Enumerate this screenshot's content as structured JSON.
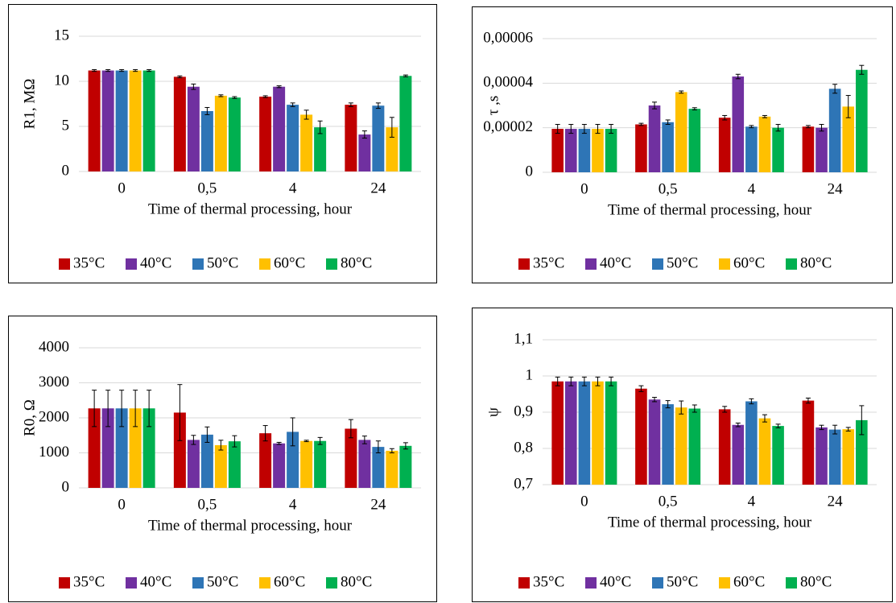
{
  "chart_data": [
    {
      "type": "bar",
      "y_label": "R1, MΩ",
      "x_label": "Time of thermal processing, hour",
      "categories": [
        "0",
        "0,5",
        "4",
        "24"
      ],
      "ylim": [
        0,
        15
      ],
      "yticks": [
        0,
        5,
        10,
        15
      ],
      "grid": true,
      "legend": "bottom",
      "series": [
        {
          "name": "35°C",
          "color": "#c00000",
          "values": [
            11.2,
            10.5,
            8.3,
            7.4
          ],
          "errors": [
            0.1,
            0.1,
            0.1,
            0.2
          ]
        },
        {
          "name": "40°C",
          "color": "#7030a0",
          "values": [
            11.2,
            9.4,
            9.4,
            4.1
          ],
          "errors": [
            0.1,
            0.3,
            0.1,
            0.4
          ]
        },
        {
          "name": "50°C",
          "color": "#2e75b6",
          "values": [
            11.2,
            6.7,
            7.4,
            7.3
          ],
          "errors": [
            0.1,
            0.4,
            0.2,
            0.3
          ]
        },
        {
          "name": "60°C",
          "color": "#ffc000",
          "values": [
            11.2,
            8.4,
            6.3,
            4.9
          ],
          "errors": [
            0.1,
            0.1,
            0.5,
            1.1
          ]
        },
        {
          "name": "80°C",
          "color": "#00b050",
          "values": [
            11.2,
            8.2,
            4.9,
            10.6
          ],
          "errors": [
            0.1,
            0.1,
            0.7,
            0.1
          ]
        }
      ]
    },
    {
      "type": "bar",
      "y_label": "τ ,s",
      "x_label": "Time of thermal processing, hour",
      "categories": [
        "0",
        "0,5",
        "4",
        "24"
      ],
      "ylim": [
        0,
        6e-05
      ],
      "yticks": [
        0,
        {
          "value": 2e-05,
          "label": "0,00002"
        },
        {
          "value": 4e-05,
          "label": "0,00004"
        },
        {
          "value": 6e-05,
          "label": "0,00006"
        }
      ],
      "grid": true,
      "legend": "bottom",
      "series": [
        {
          "name": "35°C",
          "color": "#c00000",
          "values": [
            1.95e-05,
            2.15e-05,
            2.45e-05,
            2.05e-05
          ],
          "errors": [
            2e-06,
            5e-07,
            1e-06,
            5e-07
          ]
        },
        {
          "name": "40°C",
          "color": "#7030a0",
          "values": [
            1.95e-05,
            3e-05,
            4.3e-05,
            2e-05
          ],
          "errors": [
            2e-06,
            1.5e-06,
            1e-06,
            1.5e-06
          ]
        },
        {
          "name": "50°C",
          "color": "#2e75b6",
          "values": [
            1.95e-05,
            2.25e-05,
            2.05e-05,
            3.75e-05
          ],
          "errors": [
            2e-06,
            1e-06,
            5e-07,
            2e-06
          ]
        },
        {
          "name": "60°C",
          "color": "#ffc000",
          "values": [
            1.95e-05,
            3.6e-05,
            2.5e-05,
            2.95e-05
          ],
          "errors": [
            2e-06,
            5e-07,
            5e-07,
            5e-06
          ]
        },
        {
          "name": "80°C",
          "color": "#00b050",
          "values": [
            1.95e-05,
            2.85e-05,
            2e-05,
            4.6e-05
          ],
          "errors": [
            2e-06,
            5e-07,
            1.5e-06,
            2e-06
          ]
        }
      ]
    },
    {
      "type": "bar",
      "y_label": "R0, Ω",
      "x_label": "Time of thermal processing, hour",
      "categories": [
        "0",
        "0,5",
        "4",
        "24"
      ],
      "ylim": [
        0,
        4000
      ],
      "yticks": [
        0,
        1000,
        2000,
        3000,
        4000
      ],
      "grid": true,
      "legend": "bottom",
      "series": [
        {
          "name": "35°C",
          "color": "#c00000",
          "values": [
            2270,
            2150,
            1560,
            1690
          ],
          "errors": [
            520,
            800,
            220,
            260
          ]
        },
        {
          "name": "40°C",
          "color": "#7030a0",
          "values": [
            2270,
            1370,
            1270,
            1370
          ],
          "errors": [
            520,
            130,
            30,
            110
          ]
        },
        {
          "name": "50°C",
          "color": "#2e75b6",
          "values": [
            2270,
            1520,
            1600,
            1170
          ],
          "errors": [
            520,
            220,
            400,
            170
          ]
        },
        {
          "name": "60°C",
          "color": "#ffc000",
          "values": [
            2270,
            1220,
            1340,
            1060
          ],
          "errors": [
            520,
            140,
            20,
            60
          ]
        },
        {
          "name": "80°C",
          "color": "#00b050",
          "values": [
            2270,
            1330,
            1340,
            1200
          ],
          "errors": [
            520,
            160,
            100,
            90
          ]
        }
      ]
    },
    {
      "type": "bar",
      "y_label": "ψ",
      "x_label": "Time of thermal processing, hour",
      "categories": [
        "0",
        "0,5",
        "4",
        "24"
      ],
      "ylim": [
        0.7,
        1.1
      ],
      "yticks": [
        {
          "value": 0.7,
          "label": "0,7"
        },
        {
          "value": 0.8,
          "label": "0,8"
        },
        {
          "value": 0.9,
          "label": "0,9"
        },
        1,
        {
          "value": 1.1,
          "label": "1,1"
        }
      ],
      "grid": true,
      "legend": "bottom",
      "series": [
        {
          "name": "35°C",
          "color": "#c00000",
          "values": [
            0.985,
            0.965,
            0.908,
            0.932
          ],
          "errors": [
            0.012,
            0.008,
            0.008,
            0.007
          ]
        },
        {
          "name": "40°C",
          "color": "#7030a0",
          "values": [
            0.985,
            0.935,
            0.865,
            0.858
          ],
          "errors": [
            0.012,
            0.006,
            0.005,
            0.006
          ]
        },
        {
          "name": "50°C",
          "color": "#2e75b6",
          "values": [
            0.985,
            0.922,
            0.93,
            0.852
          ],
          "errors": [
            0.012,
            0.01,
            0.007,
            0.012
          ]
        },
        {
          "name": "60°C",
          "color": "#ffc000",
          "values": [
            0.985,
            0.913,
            0.883,
            0.853
          ],
          "errors": [
            0.012,
            0.018,
            0.01,
            0.005
          ]
        },
        {
          "name": "80°C",
          "color": "#00b050",
          "values": [
            0.985,
            0.91,
            0.862,
            0.878
          ],
          "errors": [
            0.012,
            0.01,
            0.005,
            0.04
          ]
        }
      ]
    }
  ]
}
